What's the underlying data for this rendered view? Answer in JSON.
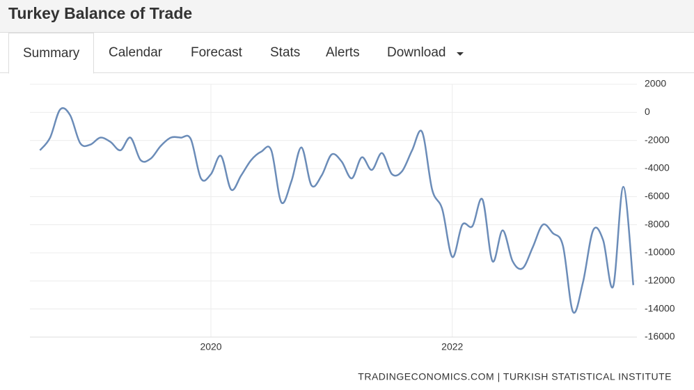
{
  "header": {
    "title": "Turkey Balance of Trade"
  },
  "tabs": [
    "Summary",
    "Calendar",
    "Forecast",
    "Stats",
    "Alerts",
    "Download"
  ],
  "chart_data": {
    "type": "line",
    "x": [
      2018.583,
      2018.667,
      2018.75,
      2018.833,
      2018.917,
      2019.0,
      2019.083,
      2019.167,
      2019.25,
      2019.333,
      2019.417,
      2019.5,
      2019.583,
      2019.667,
      2019.75,
      2019.833,
      2019.917,
      2020.0,
      2020.083,
      2020.167,
      2020.25,
      2020.333,
      2020.417,
      2020.5,
      2020.583,
      2020.667,
      2020.75,
      2020.833,
      2020.917,
      2021.0,
      2021.083,
      2021.167,
      2021.25,
      2021.333,
      2021.417,
      2021.5,
      2021.583,
      2021.667,
      2021.75,
      2021.833,
      2021.917,
      2022.0,
      2022.083,
      2022.167,
      2022.25,
      2022.333,
      2022.417,
      2022.5,
      2022.583,
      2022.667,
      2022.75,
      2022.833,
      2022.917,
      2023.0,
      2023.083,
      2023.167,
      2023.25,
      2023.333,
      2023.417,
      2023.5
    ],
    "series": [
      {
        "name": "Balance of Trade",
        "color": "#6b8cb8",
        "values": [
          -2700,
          -1800,
          200,
          -200,
          -2200,
          -2300,
          -1800,
          -2100,
          -2700,
          -1800,
          -3400,
          -3300,
          -2400,
          -1800,
          -1800,
          -1900,
          -4700,
          -4400,
          -3100,
          -5500,
          -4500,
          -3400,
          -2800,
          -2700,
          -6400,
          -4900,
          -2500,
          -5200,
          -4500,
          -3000,
          -3500,
          -4700,
          -3200,
          -4100,
          -2900,
          -4400,
          -4200,
          -2700,
          -1400,
          -5500,
          -6900,
          -10300,
          -8000,
          -8100,
          -6200,
          -10600,
          -8400,
          -10600,
          -11100,
          -9600,
          -8000,
          -8600,
          -9500,
          -14200,
          -12100,
          -8400,
          -9100,
          -12400,
          -5300,
          -12300
        ]
      }
    ],
    "xlim": [
      2018.5,
      2023.53
    ],
    "xticks": [
      2020,
      2022
    ],
    "ylim": [
      -16000,
      2000
    ],
    "yticks": [
      2000,
      0,
      -2000,
      -4000,
      -6000,
      -8000,
      -10000,
      -12000,
      -14000,
      -16000
    ],
    "grid": true,
    "source": "TRADINGECONOMICS.COM | TURKISH STATISTICAL INSTITUTE"
  }
}
